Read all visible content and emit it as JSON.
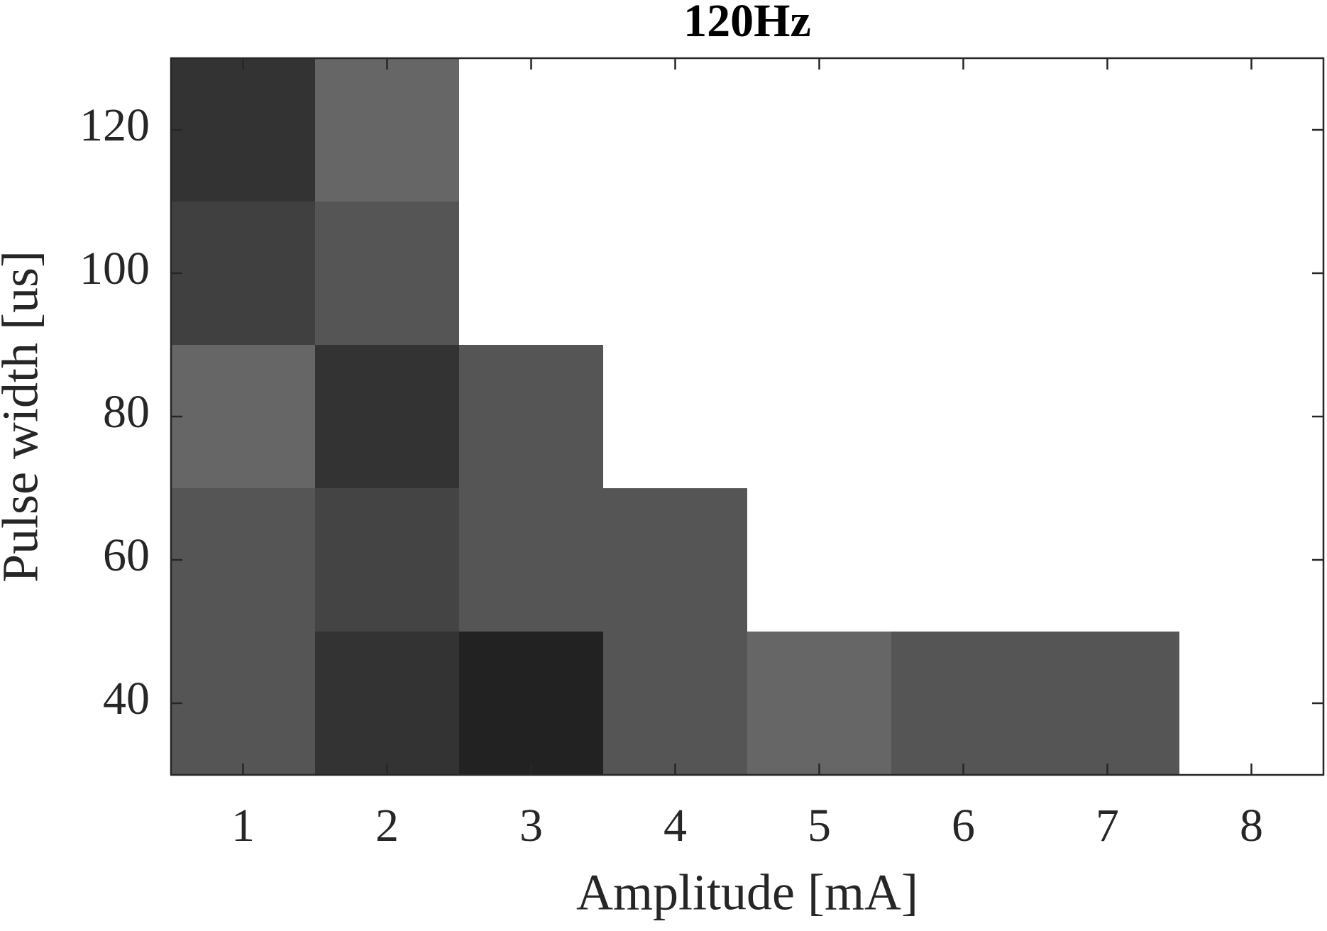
{
  "chart_data": {
    "type": "heatmap",
    "title": "120Hz",
    "xlabel": "Amplitude [mA]",
    "ylabel": "Pulse width [us]",
    "xlim": [
      0.5,
      8.5
    ],
    "xticks": [
      1,
      2,
      3,
      4,
      5,
      6,
      7,
      8
    ],
    "ylim": [
      30,
      130
    ],
    "yticks": [
      40,
      60,
      80,
      100,
      120
    ],
    "cell_height": 20,
    "cells": {
      "x": [
        1,
        1,
        1,
        1,
        1,
        2,
        2,
        2,
        2,
        2,
        3,
        3,
        3,
        4,
        4,
        5,
        6,
        7
      ],
      "y": [
        120,
        100,
        80,
        60,
        40,
        120,
        100,
        80,
        60,
        40,
        80,
        60,
        40,
        60,
        40,
        40,
        40,
        40
      ],
      "color": [
        "#333333",
        "#404040",
        "#666666",
        "#555555",
        "#555555",
        "#666666",
        "#555555",
        "#333333",
        "#444444",
        "#333333",
        "#555555",
        "#555555",
        "#222222",
        "#555555",
        "#555555",
        "#666666",
        "#555555",
        "#555555"
      ]
    }
  }
}
